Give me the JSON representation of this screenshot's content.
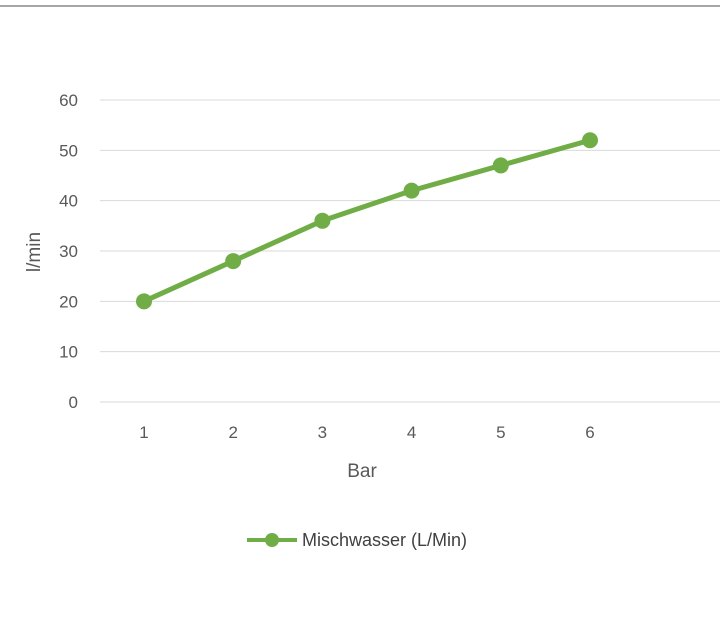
{
  "chart_data": {
    "type": "line",
    "x": [
      1,
      2,
      3,
      4,
      5,
      6
    ],
    "series": [
      {
        "name": "Mischwasser (L/Min)",
        "color": "#70ad47",
        "values": [
          20,
          28,
          36,
          42,
          47,
          52
        ]
      }
    ],
    "xlabel": "Bar",
    "ylabel": "l/min",
    "y_ticks": [
      0,
      10,
      20,
      30,
      40,
      50,
      60
    ],
    "x_ticks": [
      "1",
      "2",
      "3",
      "4",
      "5",
      "6"
    ],
    "ylim": [
      0,
      60
    ],
    "grid": true,
    "legend_position": "bottom"
  }
}
